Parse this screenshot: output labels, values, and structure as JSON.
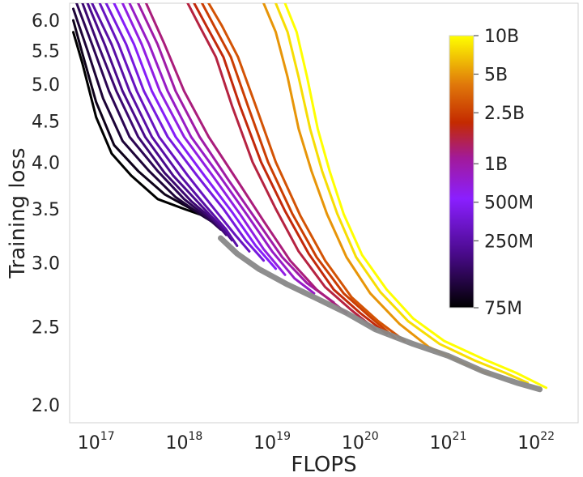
{
  "chart_data": {
    "type": "line",
    "xlabel": "FLOPS",
    "ylabel": "Training loss",
    "x_scale": "log",
    "y_scale": "log",
    "xlim": [
      5e+16,
      3e+22
    ],
    "ylim": [
      1.9,
      6.3
    ],
    "x_tick_labels": [
      {
        "value": 1e+17,
        "base": "10",
        "exp": "17"
      },
      {
        "value": 1e+18,
        "base": "10",
        "exp": "18"
      },
      {
        "value": 1e+19,
        "base": "10",
        "exp": "19"
      },
      {
        "value": 1e+20,
        "base": "10",
        "exp": "20"
      },
      {
        "value": 1e+21,
        "base": "10",
        "exp": "21"
      },
      {
        "value": 1e+22,
        "base": "10",
        "exp": "22"
      }
    ],
    "y_ticks": [
      {
        "value": 2.0,
        "label": "2.0"
      },
      {
        "value": 2.5,
        "label": "2.5"
      },
      {
        "value": 3.0,
        "label": "3.0"
      },
      {
        "value": 3.5,
        "label": "3.5"
      },
      {
        "value": 4.0,
        "label": "4.0"
      },
      {
        "value": 4.5,
        "label": "4.5"
      },
      {
        "value": 5.0,
        "label": "5.0"
      },
      {
        "value": 5.5,
        "label": "5.5"
      },
      {
        "value": 6.0,
        "label": "6.0"
      }
    ],
    "grid": false,
    "colorbar": {
      "colormap": "gnuplot-like (black-purple-red-orange-yellow)",
      "scale": "log",
      "min_params": 75000000.0,
      "max_params": 10000000000.0,
      "ticks": [
        {
          "value": 75000000.0,
          "label": "75M"
        },
        {
          "value": 250000000.0,
          "label": "250M"
        },
        {
          "value": 500000000.0,
          "label": "500M"
        },
        {
          "value": 1000000000.0,
          "label": "1B"
        },
        {
          "value": 2500000000.0,
          "label": "2.5B"
        },
        {
          "value": 5000000000.0,
          "label": "5B"
        },
        {
          "value": 10000000000.0,
          "label": "10B"
        }
      ],
      "position": "right"
    },
    "series": [
      {
        "params": 75000000.0,
        "points": [
          [
            5.5e+16,
            5.8
          ],
          [
            7e+16,
            5.3
          ],
          [
            1e+17,
            4.55
          ],
          [
            1.5e+17,
            4.1
          ],
          [
            2.5e+17,
            3.85
          ],
          [
            5e+17,
            3.6
          ],
          [
            1e+18,
            3.5
          ],
          [
            1.7e+18,
            3.43
          ]
        ]
      },
      {
        "params": 90000000.0,
        "points": [
          [
            5.5e+16,
            6.0
          ],
          [
            7e+16,
            5.45
          ],
          [
            1e+17,
            4.75
          ],
          [
            1.6e+17,
            4.2
          ],
          [
            3e+17,
            3.9
          ],
          [
            6e+17,
            3.65
          ],
          [
            1.2e+18,
            3.5
          ],
          [
            2e+18,
            3.4
          ]
        ]
      },
      {
        "params": 110000000.0,
        "points": [
          [
            5.5e+16,
            6.2
          ],
          [
            8e+16,
            5.5
          ],
          [
            1.2e+17,
            4.8
          ],
          [
            2e+17,
            4.25
          ],
          [
            4e+17,
            3.9
          ],
          [
            8e+17,
            3.62
          ],
          [
            1.5e+18,
            3.45
          ],
          [
            2.3e+18,
            3.35
          ]
        ]
      },
      {
        "params": 135000000.0,
        "points": [
          [
            6e+16,
            6.3
          ],
          [
            9e+16,
            5.6
          ],
          [
            1.4e+17,
            4.9
          ],
          [
            2.4e+17,
            4.3
          ],
          [
            5e+17,
            3.9
          ],
          [
            1e+18,
            3.6
          ],
          [
            1.8e+18,
            3.42
          ],
          [
            2.6e+18,
            3.3
          ]
        ]
      },
      {
        "params": 165000000.0,
        "points": [
          [
            7e+16,
            6.3
          ],
          [
            1.05e+17,
            5.6
          ],
          [
            1.7e+17,
            4.9
          ],
          [
            3e+17,
            4.3
          ],
          [
            6e+17,
            3.88
          ],
          [
            1.2e+18,
            3.58
          ],
          [
            2.2e+18,
            3.38
          ],
          [
            3e+18,
            3.25
          ]
        ]
      },
      {
        "params": 200000000.0,
        "points": [
          [
            8e+16,
            6.3
          ],
          [
            1.25e+17,
            5.6
          ],
          [
            2e+17,
            4.9
          ],
          [
            3.6e+17,
            4.3
          ],
          [
            7.5e+17,
            3.85
          ],
          [
            1.5e+18,
            3.55
          ],
          [
            2.6e+18,
            3.33
          ],
          [
            3.5e+18,
            3.2
          ]
        ]
      },
      {
        "params": 250000000.0,
        "points": [
          [
            9e+16,
            6.3
          ],
          [
            1.5e+17,
            5.6
          ],
          [
            2.4e+17,
            4.9
          ],
          [
            4.3e+17,
            4.3
          ],
          [
            9e+17,
            3.85
          ],
          [
            1.8e+18,
            3.52
          ],
          [
            3e+18,
            3.3
          ],
          [
            4e+18,
            3.15
          ]
        ]
      },
      {
        "params": 310000000.0,
        "points": [
          [
            1.1e+17,
            6.3
          ],
          [
            1.8e+17,
            5.6
          ],
          [
            2.9e+17,
            4.9
          ],
          [
            5.2e+17,
            4.3
          ],
          [
            1.1e+18,
            3.85
          ],
          [
            2.2e+18,
            3.5
          ],
          [
            3.8e+18,
            3.25
          ],
          [
            5.5e+18,
            3.1
          ]
        ]
      },
      {
        "params": 400000000.0,
        "points": [
          [
            1.3e+17,
            6.3
          ],
          [
            2.2e+17,
            5.6
          ],
          [
            3.5e+17,
            4.9
          ],
          [
            6.5e+17,
            4.3
          ],
          [
            1.4e+18,
            3.85
          ],
          [
            2.8e+18,
            3.5
          ],
          [
            5e+18,
            3.2
          ],
          [
            8e+18,
            3.02
          ]
        ]
      },
      {
        "params": 500000000.0,
        "points": [
          [
            1.6e+17,
            6.3
          ],
          [
            2.7e+17,
            5.6
          ],
          [
            4.3e+17,
            4.9
          ],
          [
            8e+17,
            4.3
          ],
          [
            1.7e+18,
            3.85
          ],
          [
            3.5e+18,
            3.47
          ],
          [
            6.5e+18,
            3.15
          ],
          [
            1.1e+19,
            2.95
          ]
        ]
      },
      {
        "params": 650000000.0,
        "points": [
          [
            2e+17,
            6.3
          ],
          [
            3.3e+17,
            5.6
          ],
          [
            5.3e+17,
            4.9
          ],
          [
            1e+18,
            4.3
          ],
          [
            2.1e+18,
            3.85
          ],
          [
            4.3e+18,
            3.45
          ],
          [
            8e+18,
            3.12
          ],
          [
            1.4e+19,
            2.9
          ]
        ]
      },
      {
        "params": 800000000.0,
        "points": [
          [
            2.4e+17,
            6.3
          ],
          [
            4e+17,
            5.6
          ],
          [
            6.5e+17,
            4.9
          ],
          [
            1.2e+18,
            4.3
          ],
          [
            2.6e+18,
            3.83
          ],
          [
            5.3e+18,
            3.43
          ],
          [
            1e+19,
            3.1
          ],
          [
            1.8e+19,
            2.87
          ],
          [
            3e+19,
            2.75
          ]
        ]
      },
      {
        "params": 1000000000.0,
        "points": [
          [
            3e+17,
            6.3
          ],
          [
            5e+17,
            5.6
          ],
          [
            8e+17,
            4.9
          ],
          [
            1.5e+18,
            4.3
          ],
          [
            3.2e+18,
            3.8
          ],
          [
            6.5e+18,
            3.4
          ],
          [
            1.3e+19,
            3.05
          ],
          [
            2.5e+19,
            2.83
          ],
          [
            5e+19,
            2.68
          ]
        ]
      },
      {
        "params": 1250000000.0,
        "points": [
          [
            3.7e+17,
            6.3
          ],
          [
            6e+17,
            5.6
          ],
          [
            1e+18,
            4.9
          ],
          [
            1.9e+18,
            4.3
          ],
          [
            4e+18,
            3.8
          ],
          [
            8e+18,
            3.38
          ],
          [
            1.6e+19,
            3.02
          ],
          [
            3.2e+19,
            2.78
          ],
          [
            7e+19,
            2.6
          ]
        ]
      },
      {
        "params": 1600000000.0,
        "points": [
          [
            1.1e+18,
            6.3
          ],
          [
            1.5e+18,
            5.9
          ],
          [
            2.3e+18,
            5.4
          ],
          [
            3.5e+18,
            4.7
          ],
          [
            6e+18,
            4.0
          ],
          [
            1.1e+19,
            3.5
          ],
          [
            2e+19,
            3.1
          ],
          [
            4e+19,
            2.8
          ],
          [
            8e+19,
            2.62
          ],
          [
            1.5e+20,
            2.48
          ]
        ]
      },
      {
        "params": 2000000000.0,
        "points": [
          [
            1.3e+18,
            6.3
          ],
          [
            1.8e+18,
            5.9
          ],
          [
            2.8e+18,
            5.4
          ],
          [
            4.3e+18,
            4.7
          ],
          [
            7.5e+18,
            4.0
          ],
          [
            1.4e+19,
            3.48
          ],
          [
            2.6e+19,
            3.08
          ],
          [
            5e+19,
            2.78
          ],
          [
            1e+20,
            2.6
          ],
          [
            2e+20,
            2.45
          ]
        ]
      },
      {
        "params": 2500000000.0,
        "points": [
          [
            1.6e+18,
            6.3
          ],
          [
            2.2e+18,
            5.9
          ],
          [
            3.4e+18,
            5.4
          ],
          [
            5.3e+18,
            4.7
          ],
          [
            9e+18,
            4.0
          ],
          [
            1.7e+19,
            3.45
          ],
          [
            3.2e+19,
            3.05
          ],
          [
            6.5e+19,
            2.75
          ],
          [
            1.3e+20,
            2.57
          ],
          [
            2.5e+20,
            2.42
          ]
        ]
      },
      {
        "params": 3000000000.0,
        "points": [
          [
            1.9e+18,
            6.3
          ],
          [
            2.7e+18,
            5.9
          ],
          [
            4.1e+18,
            5.4
          ],
          [
            6.5e+18,
            4.7
          ],
          [
            1.1e+19,
            4.0
          ],
          [
            2.1e+19,
            3.43
          ],
          [
            4e+19,
            3.02
          ],
          [
            8e+19,
            2.72
          ],
          [
            1.6e+20,
            2.54
          ],
          [
            3.2e+20,
            2.4
          ]
        ]
      },
      {
        "params": 5000000000.0,
        "points": [
          [
            8e+18,
            6.3
          ],
          [
            1.1e+19,
            5.8
          ],
          [
            1.5e+19,
            5.1
          ],
          [
            2e+19,
            4.4
          ],
          [
            2.8e+19,
            3.9
          ],
          [
            4.2e+19,
            3.45
          ],
          [
            7e+19,
            3.05
          ],
          [
            1.3e+20,
            2.75
          ],
          [
            2.8e+20,
            2.52
          ],
          [
            6e+20,
            2.36
          ],
          [
            1.5e+21,
            2.25
          ],
          [
            3e+21,
            2.18
          ]
        ]
      },
      {
        "params": 8000000000.0,
        "points": [
          [
            1.1e+19,
            6.3
          ],
          [
            1.5e+19,
            5.8
          ],
          [
            2e+19,
            5.1
          ],
          [
            2.7e+19,
            4.4
          ],
          [
            3.7e+19,
            3.9
          ],
          [
            5.5e+19,
            3.45
          ],
          [
            9e+19,
            3.05
          ],
          [
            1.7e+20,
            2.76
          ],
          [
            3.5e+20,
            2.54
          ],
          [
            8e+20,
            2.38
          ],
          [
            2e+21,
            2.27
          ],
          [
            4.5e+21,
            2.19
          ],
          [
            8e+21,
            2.13
          ]
        ]
      },
      {
        "params": 10000000000.0,
        "points": [
          [
            1.4e+19,
            6.3
          ],
          [
            1.9e+19,
            5.8
          ],
          [
            2.5e+19,
            5.1
          ],
          [
            3.3e+19,
            4.4
          ],
          [
            4.5e+19,
            3.9
          ],
          [
            6.5e+19,
            3.45
          ],
          [
            1.05e+20,
            3.07
          ],
          [
            2e+20,
            2.78
          ],
          [
            4e+20,
            2.56
          ],
          [
            9e+20,
            2.4
          ],
          [
            2.5e+21,
            2.28
          ],
          [
            6e+21,
            2.19
          ],
          [
            1.3e+22,
            2.1
          ]
        ]
      }
    ],
    "frontier": {
      "color": "#888888",
      "points": [
        [
          2.6e+18,
          3.22
        ],
        [
          4e+18,
          3.08
        ],
        [
          7e+18,
          2.95
        ],
        [
          1.5e+19,
          2.82
        ],
        [
          3e+19,
          2.72
        ],
        [
          7e+19,
          2.6
        ],
        [
          1.5e+20,
          2.48
        ],
        [
          4e+20,
          2.38
        ],
        [
          1e+21,
          2.3
        ],
        [
          2.5e+21,
          2.2
        ],
        [
          6e+21,
          2.13
        ],
        [
          1.1e+22,
          2.09
        ]
      ]
    }
  }
}
